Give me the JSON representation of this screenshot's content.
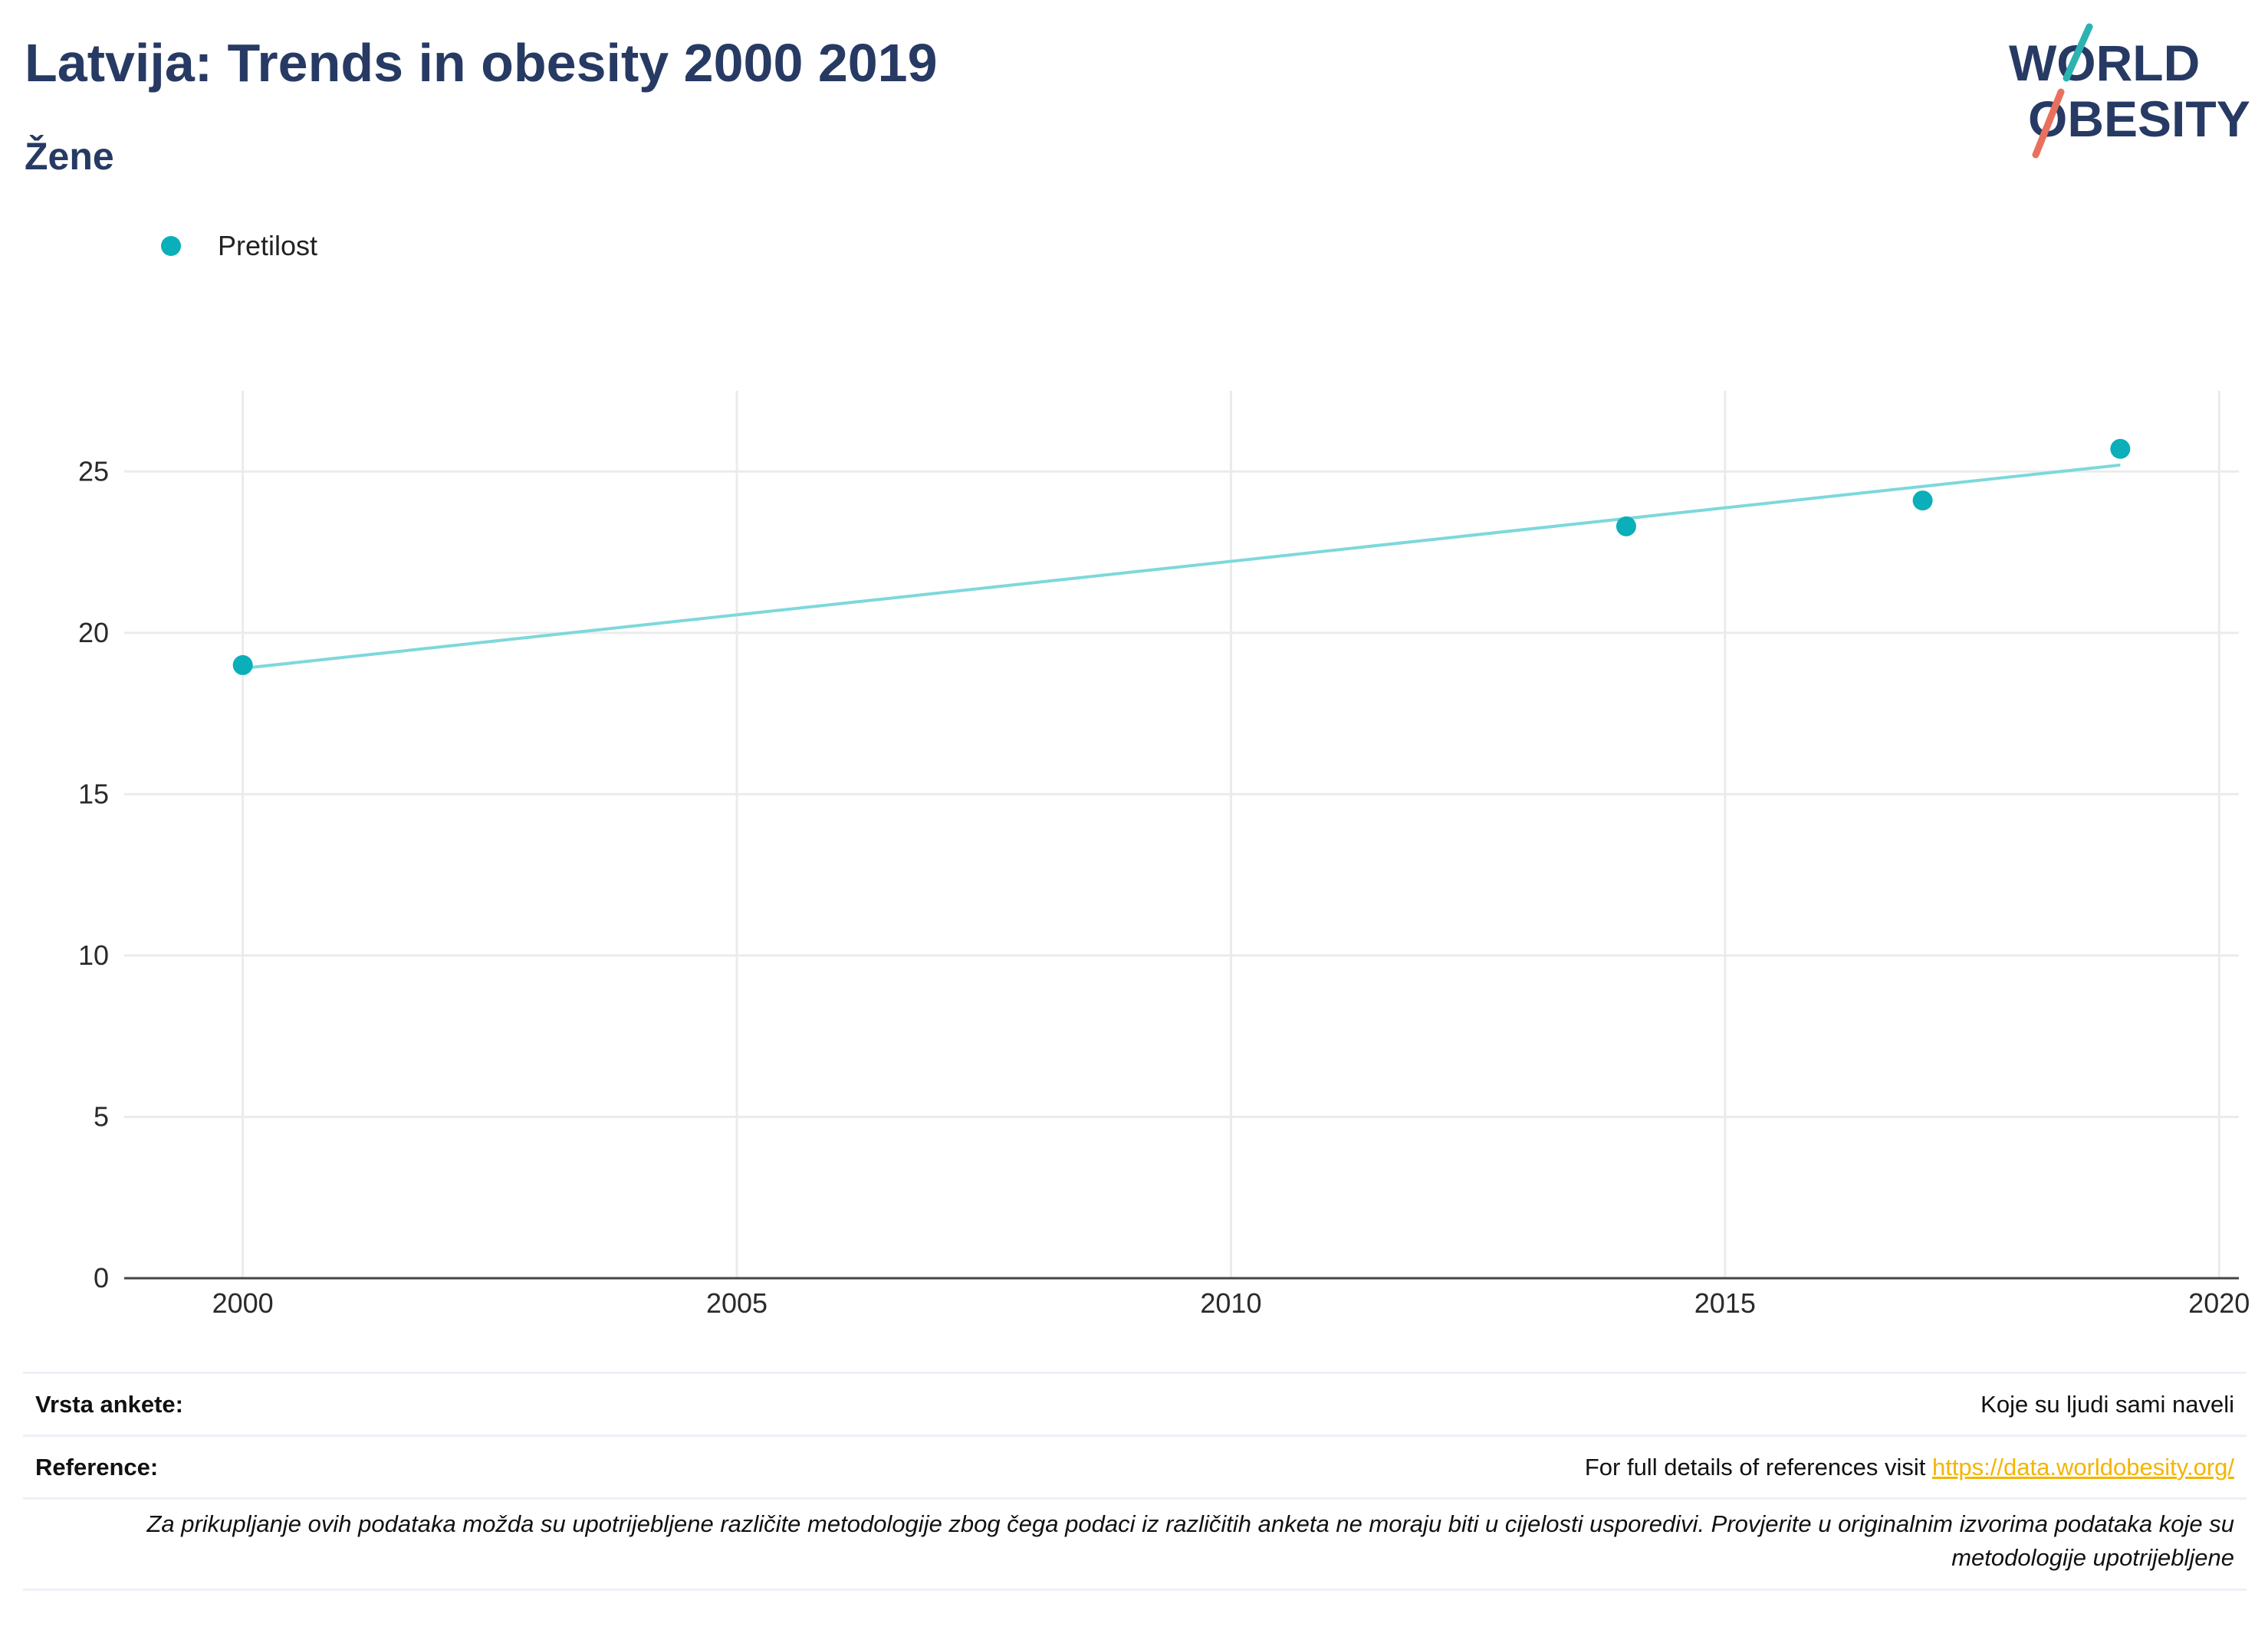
{
  "header": {
    "title": "Latvija: Trends in obesity 2000 2019",
    "subtitle": "Žene"
  },
  "logo": {
    "line1": "WORLD",
    "line2": "OBESITY",
    "colors": {
      "text": "#263a63",
      "teal": "#2bb3b1",
      "coral": "#e9705e"
    }
  },
  "legend": {
    "label": "Pretilost"
  },
  "chart_data": {
    "type": "scatter",
    "x_ticks": [
      2000,
      2005,
      2010,
      2015,
      2020
    ],
    "y_ticks": [
      0,
      5,
      10,
      15,
      20,
      25
    ],
    "xlim": [
      1998.8,
      2020.2
    ],
    "ylim": [
      0,
      27.5
    ],
    "grid": true,
    "legend_position": "top-left",
    "series": [
      {
        "name": "Pretilost",
        "color": "#0aafb9",
        "points": [
          {
            "x": 2000,
            "y": 19.0
          },
          {
            "x": 2014,
            "y": 23.3
          },
          {
            "x": 2017,
            "y": 24.1
          },
          {
            "x": 2019,
            "y": 25.7
          }
        ]
      }
    ],
    "trend_line": {
      "color": "#7dd8db",
      "start": {
        "x": 2000,
        "y": 18.9
      },
      "end": {
        "x": 2019,
        "y": 25.2
      }
    }
  },
  "footer": {
    "survey_label": "Vrsta ankete:",
    "survey_value": "Koje su ljudi sami naveli",
    "reference_label": "Reference:",
    "reference_text": "For full details of references visit ",
    "reference_link": "https://data.worldobesity.org/",
    "note": "Za prikupljanje ovih podataka možda su upotrijebljene različite metodologije zbog čega podaci iz različitih anketa ne moraju biti u cijelosti usporedivi. Provjerite u originalnim izvorima podataka koje su metodologije upotrijebljene"
  }
}
